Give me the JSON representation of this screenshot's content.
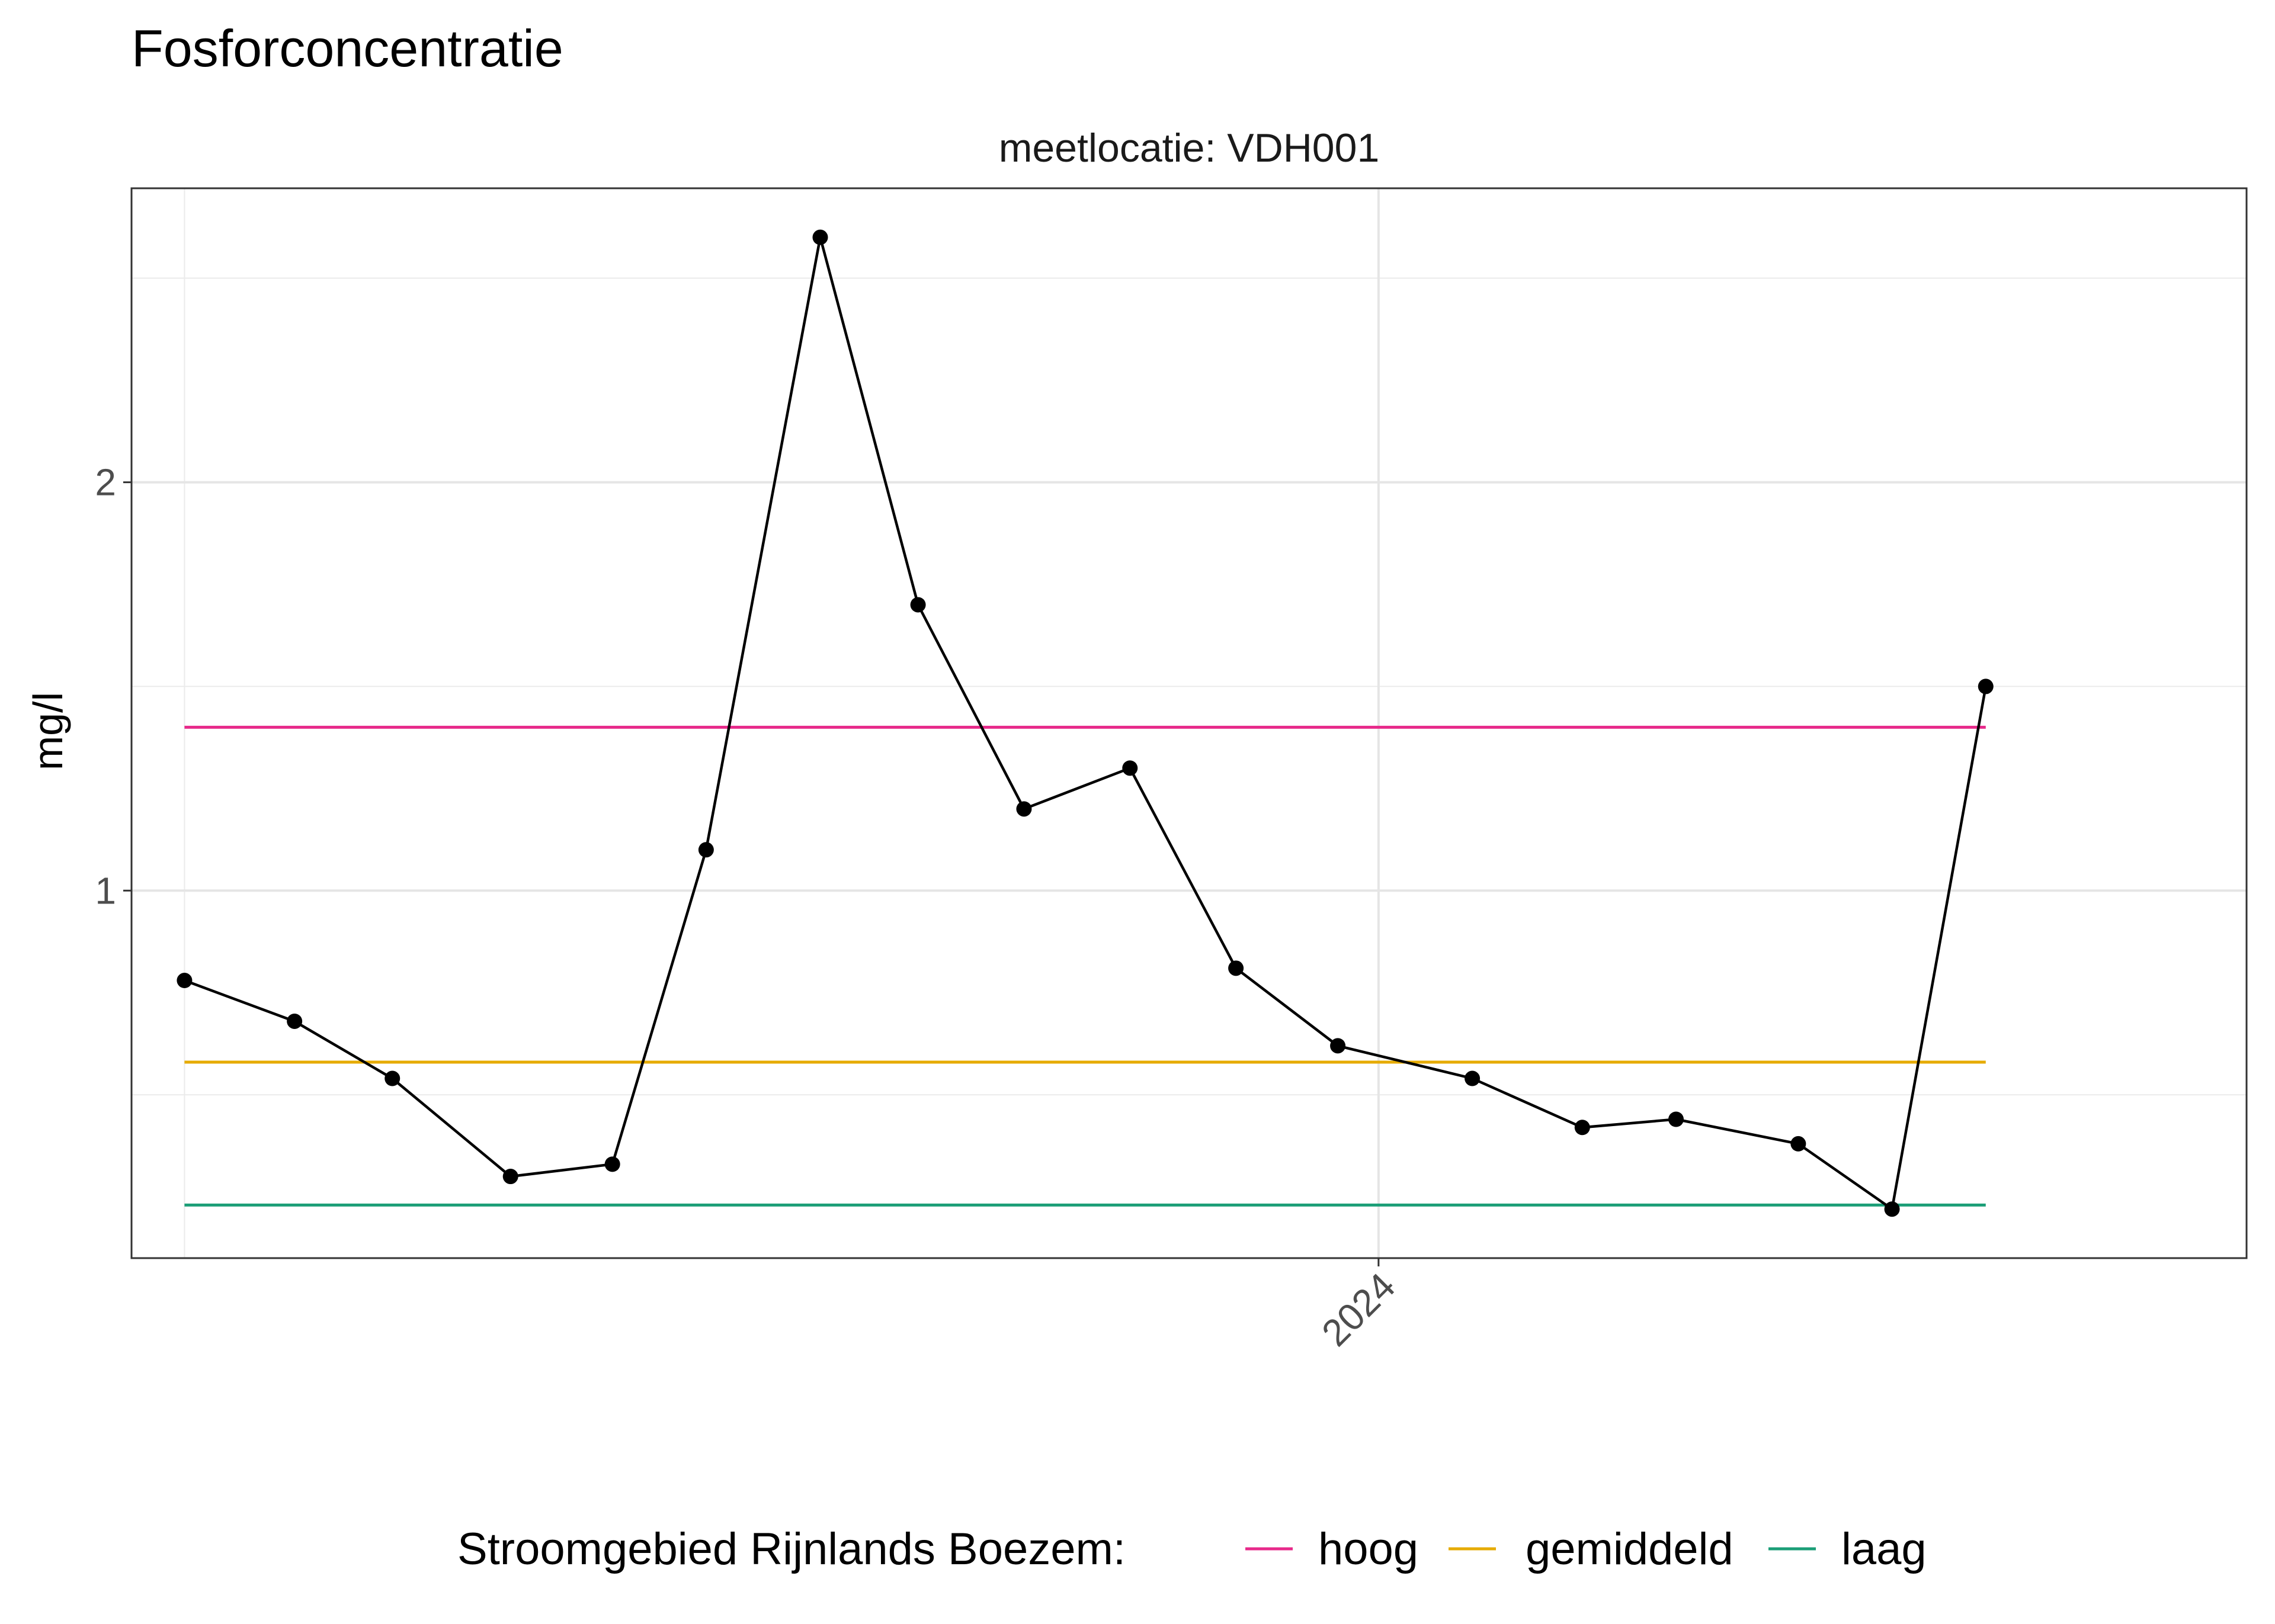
{
  "chart_data": {
    "type": "line",
    "title": "Fosforconcentratie",
    "facet_label": "meetlocatie: VDH001",
    "xlabel": "",
    "ylabel": "mg/l",
    "ylim": [
      0.1,
      2.72
    ],
    "y_ticks": [
      1,
      2
    ],
    "x_range": [
      "2023-03-01",
      "2024-08-01"
    ],
    "x_ticks": [
      {
        "label": "2024",
        "date": "2024-01-01"
      }
    ],
    "grid": true,
    "series": [
      {
        "color": "#000000",
        "x": [
          "2023-03-14",
          "2023-04-10",
          "2023-05-04",
          "2023-06-02",
          "2023-06-27",
          "2023-07-20",
          "2023-08-17",
          "2023-09-10",
          "2023-10-06",
          "2023-11-01",
          "2023-11-27",
          "2023-12-22",
          "2024-01-24",
          "2024-02-20",
          "2024-03-14",
          "2024-04-13",
          "2024-05-06",
          "2024-05-29"
        ],
        "values": [
          0.78,
          0.68,
          0.54,
          0.3,
          0.33,
          1.1,
          2.6,
          1.7,
          1.2,
          1.3,
          0.81,
          0.62,
          0.54,
          0.42,
          0.44,
          0.38,
          0.22,
          1.5
        ]
      }
    ],
    "reference_lines": [
      {
        "name": "hoog",
        "value": 1.4,
        "color": "#e7298a"
      },
      {
        "name": "gemiddeld",
        "value": 0.58,
        "color": "#e6ab02"
      },
      {
        "name": "laag",
        "value": 0.23,
        "color": "#1b9e77"
      }
    ],
    "legend": {
      "title": "Stroomgebied Rijnlands Boezem:",
      "position": "bottom"
    }
  }
}
